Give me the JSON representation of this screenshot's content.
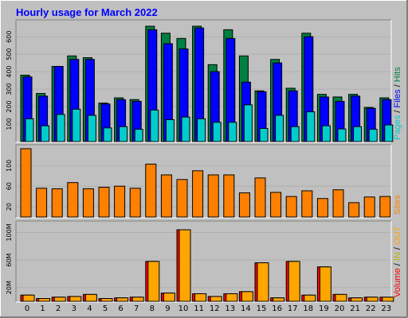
{
  "page": {
    "background": "#c0c0c0"
  },
  "header": {
    "title": "Hourly usage for March 2022",
    "title_color": "#0000ff"
  },
  "legends": {
    "top": [
      {
        "text": "Pages",
        "color": "#00cccc"
      },
      {
        "text": " / ",
        "color": "#000000"
      },
      {
        "text": "Files",
        "color": "#0000ff"
      },
      {
        "text": " / ",
        "color": "#000000"
      },
      {
        "text": "Hits",
        "color": "#008040"
      }
    ],
    "middle": [
      {
        "text": "Sites",
        "color": "#ff8000"
      }
    ],
    "bottom": [
      {
        "text": "Volume",
        "color": "#ff0000"
      },
      {
        "text": " / ",
        "color": "#000000"
      },
      {
        "text": "IN",
        "color": "#b5b500"
      },
      {
        "text": " / ",
        "color": "#000000"
      },
      {
        "text": "OUT",
        "color": "#ffa500"
      }
    ]
  },
  "chart_data": [
    {
      "type": "bar",
      "title": "Hourly usage for March 2022",
      "categories": [
        "0",
        "1",
        "2",
        "3",
        "4",
        "5",
        "6",
        "7",
        "8",
        "9",
        "10",
        "11",
        "12",
        "13",
        "14",
        "15",
        "16",
        "17",
        "18",
        "19",
        "20",
        "21",
        "22",
        "23"
      ],
      "yticks": [
        "100",
        "200",
        "300",
        "400",
        "500",
        "600"
      ],
      "ylim": [
        0,
        660
      ],
      "grid": true,
      "series": [
        {
          "name": "Hits",
          "color": "#008040",
          "values": [
            380,
            275,
            430,
            490,
            480,
            220,
            250,
            240,
            660,
            620,
            590,
            660,
            440,
            640,
            490,
            290,
            470,
            305,
            620,
            270,
            255,
            270,
            195,
            250
          ]
        },
        {
          "name": "Files",
          "color": "#0000ff",
          "values": [
            370,
            260,
            430,
            470,
            470,
            215,
            240,
            230,
            640,
            560,
            530,
            650,
            400,
            590,
            340,
            285,
            450,
            290,
            600,
            255,
            230,
            260,
            190,
            240
          ]
        },
        {
          "name": "Pages",
          "color": "#00cccc",
          "values": [
            130,
            90,
            155,
            185,
            150,
            78,
            85,
            70,
            180,
            125,
            140,
            130,
            110,
            110,
            210,
            75,
            150,
            85,
            170,
            90,
            72,
            85,
            70,
            95
          ]
        }
      ]
    },
    {
      "type": "bar",
      "categories": [
        "0",
        "1",
        "2",
        "3",
        "4",
        "5",
        "6",
        "7",
        "8",
        "9",
        "10",
        "11",
        "12",
        "13",
        "14",
        "15",
        "16",
        "17",
        "18",
        "19",
        "20",
        "21",
        "22",
        "23"
      ],
      "yticks": [
        "20",
        "60",
        "100"
      ],
      "ylim": [
        0,
        133
      ],
      "grid": true,
      "series": [
        {
          "name": "Sites",
          "color": "#ff8000",
          "values": [
            133,
            56,
            55,
            67,
            55,
            58,
            60,
            56,
            103,
            82,
            73,
            90,
            82,
            82,
            47,
            76,
            48,
            40,
            51,
            36,
            53,
            28,
            39,
            40
          ]
        }
      ]
    },
    {
      "type": "bar",
      "categories": [
        "0",
        "1",
        "2",
        "3",
        "4",
        "5",
        "6",
        "7",
        "8",
        "9",
        "10",
        "11",
        "12",
        "13",
        "14",
        "15",
        "16",
        "17",
        "18",
        "19",
        "20",
        "21",
        "22",
        "23"
      ],
      "yticks": [
        "20M",
        "60M",
        "100M"
      ],
      "ylim": [
        0,
        104
      ],
      "grid": true,
      "series": [
        {
          "name": "Volume",
          "color": "#ff0000",
          "values": [
            9,
            4,
            6,
            7,
            10,
            4,
            5,
            6,
            58,
            12,
            104,
            11,
            7,
            11,
            14,
            56,
            5,
            58,
            9,
            50,
            10,
            5,
            6,
            6
          ]
        },
        {
          "name": "OUT",
          "color": "#ffa500",
          "values": [
            9,
            4,
            6,
            7,
            10,
            4,
            5,
            6,
            58,
            12,
            104,
            11,
            7,
            11,
            14,
            56,
            5,
            58,
            9,
            50,
            10,
            5,
            6,
            6
          ]
        }
      ]
    }
  ]
}
